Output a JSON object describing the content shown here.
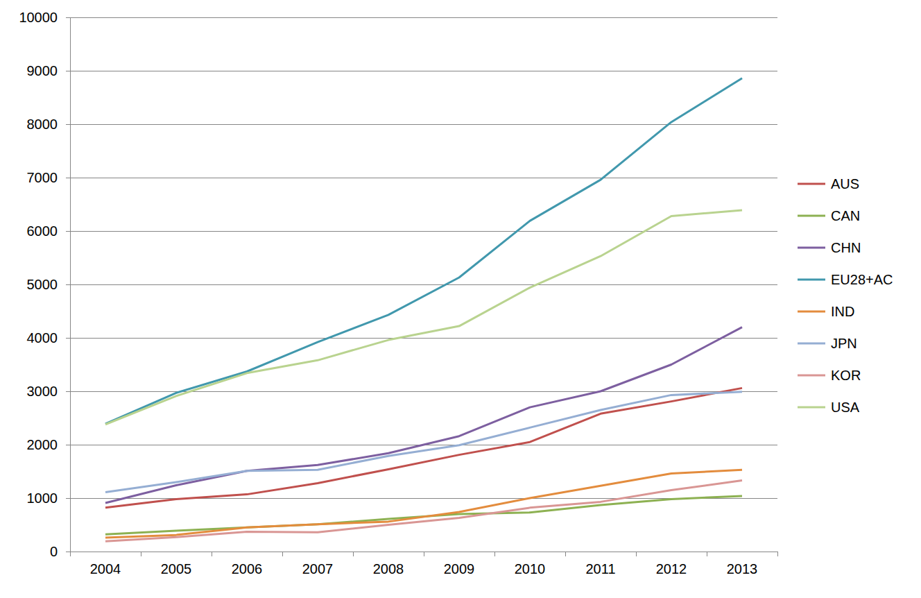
{
  "chart_data": {
    "type": "line",
    "categories": [
      "2004",
      "2005",
      "2006",
      "2007",
      "2008",
      "2009",
      "2010",
      "2011",
      "2012",
      "2013"
    ],
    "series": [
      {
        "name": "AUS",
        "color": "#c0504d",
        "values": [
          820,
          980,
          1070,
          1280,
          1540,
          1810,
          2050,
          2580,
          2810,
          3060
        ]
      },
      {
        "name": "CAN",
        "color": "#8db152",
        "values": [
          320,
          390,
          450,
          510,
          610,
          700,
          730,
          870,
          980,
          1040
        ]
      },
      {
        "name": "CHN",
        "color": "#7d5fa0",
        "values": [
          910,
          1240,
          1510,
          1620,
          1840,
          2160,
          2700,
          3000,
          3500,
          4200
        ]
      },
      {
        "name": "EU28+AC",
        "color": "#4198ad",
        "values": [
          2390,
          2970,
          3370,
          3920,
          4430,
          5130,
          6190,
          6960,
          8040,
          8860
        ]
      },
      {
        "name": "IND",
        "color": "#e38c3d",
        "values": [
          260,
          310,
          450,
          510,
          560,
          740,
          1000,
          1230,
          1460,
          1530
        ]
      },
      {
        "name": "JPN",
        "color": "#95aed3",
        "values": [
          1110,
          1300,
          1510,
          1530,
          1790,
          1990,
          2320,
          2650,
          2930,
          2990
        ]
      },
      {
        "name": "KOR",
        "color": "#d99694",
        "values": [
          190,
          270,
          370,
          360,
          500,
          630,
          820,
          930,
          1150,
          1330
        ]
      },
      {
        "name": "USA",
        "color": "#b9d38f",
        "values": [
          2380,
          2910,
          3340,
          3580,
          3960,
          4220,
          4940,
          5530,
          6280,
          6390
        ]
      }
    ],
    "ylim": [
      0,
      10000
    ],
    "yticks": [
      0,
      1000,
      2000,
      3000,
      4000,
      5000,
      6000,
      7000,
      8000,
      9000,
      10000
    ],
    "grid": true,
    "legend": "right"
  }
}
